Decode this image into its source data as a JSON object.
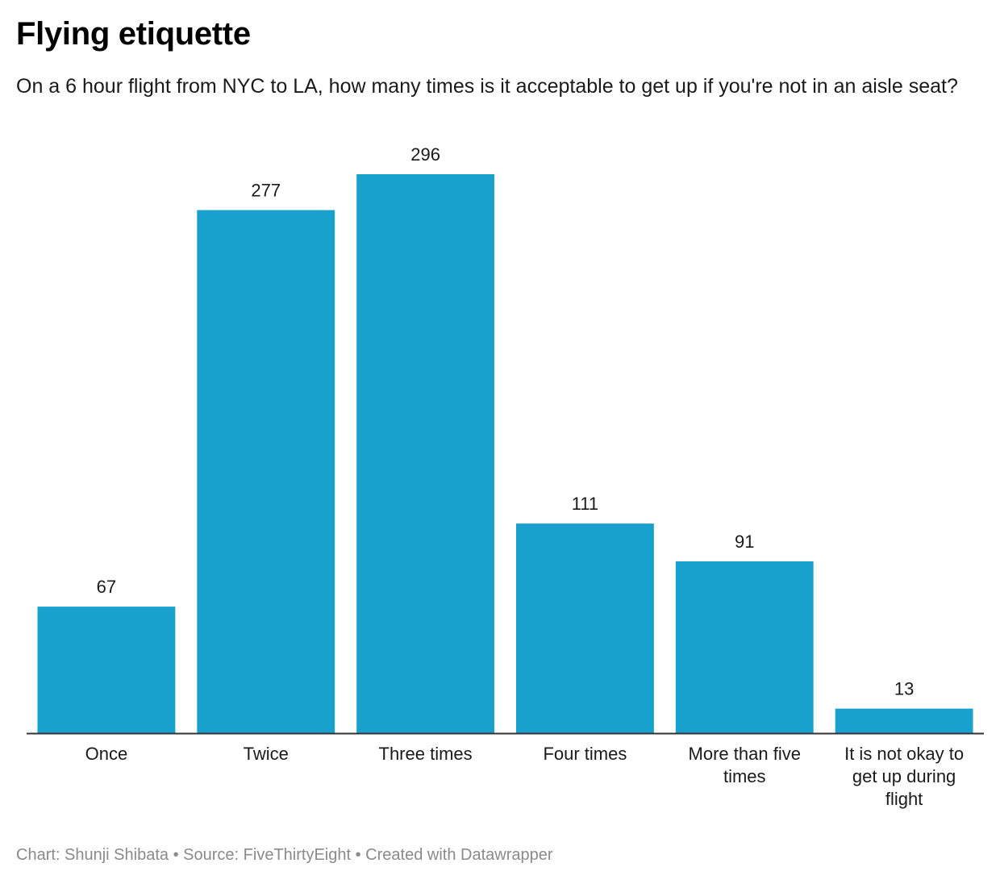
{
  "header": {
    "title": "Flying etiquette",
    "subtitle": "On a 6 hour flight from NYC to LA, how many times is it acceptable to get up if you're not in an aisle seat?"
  },
  "footer": {
    "credit_label": "Chart:",
    "credit_name": "Shunji Shibata",
    "separator": "•",
    "source_label": "Source:",
    "source_name": "FiveThirtyEight",
    "created_with": "Created with Datawrapper"
  },
  "chart_data": {
    "type": "bar",
    "title": "",
    "xlabel": "",
    "ylabel": "",
    "categories": [
      "Once",
      "Twice",
      "Three times",
      "Four times",
      "More than five times",
      "It is not okay to get up during flight"
    ],
    "category_lines": [
      [
        "Once"
      ],
      [
        "Twice"
      ],
      [
        "Three times"
      ],
      [
        "Four times"
      ],
      [
        "More than five",
        "times"
      ],
      [
        "It is not okay to",
        "get up during",
        "flight"
      ]
    ],
    "values": [
      67,
      277,
      296,
      111,
      91,
      13
    ],
    "ylim": [
      0,
      296
    ],
    "grid": false,
    "legend": "none",
    "bar_color": "#18a1cd",
    "axis_color": "#333333"
  }
}
